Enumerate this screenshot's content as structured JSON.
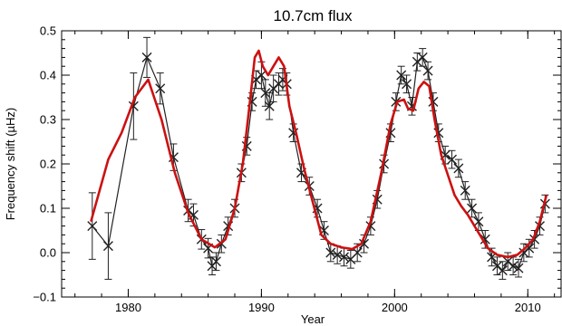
{
  "chart_data": {
    "type": "line",
    "title": "10.7cm flux",
    "xlabel": "Year",
    "ylabel": "Frequency shift (µHz)",
    "xlim": [
      1975,
      2012.5
    ],
    "ylim": [
      -0.1,
      0.5
    ],
    "x_ticks": [
      {
        "value": 1980,
        "label": "1980"
      },
      {
        "value": 1990,
        "label": "1990"
      },
      {
        "value": 2000,
        "label": "2000"
      },
      {
        "value": 2010,
        "label": "2010"
      }
    ],
    "y_ticks": [
      {
        "value": -0.1,
        "label": "−0.1"
      },
      {
        "value": 0.0,
        "label": "0.0"
      },
      {
        "value": 0.1,
        "label": "0.1"
      },
      {
        "value": 0.2,
        "label": "0.2"
      },
      {
        "value": 0.3,
        "label": "0.3"
      },
      {
        "value": 0.4,
        "label": "0.4"
      },
      {
        "value": 0.5,
        "label": "0.5"
      }
    ],
    "grid": false,
    "series": [
      {
        "kind": "observed",
        "color": "#222222",
        "marker": "x",
        "error_bars": true,
        "points": [
          {
            "x": 1977.3,
            "y": 0.06,
            "err": 0.075
          },
          {
            "x": 1978.5,
            "y": 0.015,
            "err": 0.075
          },
          {
            "x": 1980.4,
            "y": 0.33,
            "err": 0.075
          },
          {
            "x": 1981.4,
            "y": 0.44,
            "err": 0.045
          },
          {
            "x": 1982.4,
            "y": 0.37,
            "err": 0.035
          },
          {
            "x": 1983.4,
            "y": 0.215,
            "err": 0.03
          },
          {
            "x": 1984.5,
            "y": 0.095,
            "err": 0.025
          },
          {
            "x": 1984.9,
            "y": 0.085,
            "err": 0.025
          },
          {
            "x": 1985.5,
            "y": 0.03,
            "err": 0.022
          },
          {
            "x": 1986.0,
            "y": 0.01,
            "err": 0.022
          },
          {
            "x": 1986.3,
            "y": -0.03,
            "err": 0.02
          },
          {
            "x": 1986.6,
            "y": -0.02,
            "err": 0.02
          },
          {
            "x": 1987.0,
            "y": 0.02,
            "err": 0.02
          },
          {
            "x": 1987.5,
            "y": 0.06,
            "err": 0.02
          },
          {
            "x": 1988.0,
            "y": 0.1,
            "err": 0.02
          },
          {
            "x": 1988.5,
            "y": 0.18,
            "err": 0.02
          },
          {
            "x": 1988.9,
            "y": 0.24,
            "err": 0.02
          },
          {
            "x": 1989.3,
            "y": 0.34,
            "err": 0.02
          },
          {
            "x": 1989.6,
            "y": 0.39,
            "err": 0.02
          },
          {
            "x": 1990.0,
            "y": 0.4,
            "err": 0.03
          },
          {
            "x": 1990.3,
            "y": 0.36,
            "err": 0.03
          },
          {
            "x": 1990.6,
            "y": 0.33,
            "err": 0.03
          },
          {
            "x": 1990.9,
            "y": 0.37,
            "err": 0.03
          },
          {
            "x": 1991.3,
            "y": 0.38,
            "err": 0.025
          },
          {
            "x": 1991.6,
            "y": 0.39,
            "err": 0.025
          },
          {
            "x": 1991.9,
            "y": 0.38,
            "err": 0.025
          },
          {
            "x": 1992.4,
            "y": 0.27,
            "err": 0.02
          },
          {
            "x": 1993.0,
            "y": 0.18,
            "err": 0.02
          },
          {
            "x": 1993.6,
            "y": 0.15,
            "err": 0.02
          },
          {
            "x": 1994.2,
            "y": 0.1,
            "err": 0.02
          },
          {
            "x": 1994.7,
            "y": 0.05,
            "err": 0.02
          },
          {
            "x": 1995.2,
            "y": 0.0,
            "err": 0.02
          },
          {
            "x": 1995.7,
            "y": -0.005,
            "err": 0.02
          },
          {
            "x": 1996.2,
            "y": -0.01,
            "err": 0.02
          },
          {
            "x": 1996.7,
            "y": -0.015,
            "err": 0.02
          },
          {
            "x": 1997.2,
            "y": 0.0,
            "err": 0.02
          },
          {
            "x": 1997.7,
            "y": 0.02,
            "err": 0.02
          },
          {
            "x": 1998.2,
            "y": 0.06,
            "err": 0.02
          },
          {
            "x": 1998.7,
            "y": 0.12,
            "err": 0.02
          },
          {
            "x": 1999.2,
            "y": 0.2,
            "err": 0.02
          },
          {
            "x": 1999.7,
            "y": 0.27,
            "err": 0.02
          },
          {
            "x": 2000.1,
            "y": 0.34,
            "err": 0.02
          },
          {
            "x": 2000.5,
            "y": 0.4,
            "err": 0.02
          },
          {
            "x": 2000.9,
            "y": 0.38,
            "err": 0.02
          },
          {
            "x": 2001.3,
            "y": 0.33,
            "err": 0.02
          },
          {
            "x": 2001.7,
            "y": 0.43,
            "err": 0.02
          },
          {
            "x": 2002.1,
            "y": 0.44,
            "err": 0.02
          },
          {
            "x": 2002.5,
            "y": 0.41,
            "err": 0.02
          },
          {
            "x": 2002.9,
            "y": 0.34,
            "err": 0.02
          },
          {
            "x": 2003.3,
            "y": 0.27,
            "err": 0.02
          },
          {
            "x": 2003.8,
            "y": 0.22,
            "err": 0.02
          },
          {
            "x": 2004.3,
            "y": 0.21,
            "err": 0.02
          },
          {
            "x": 2004.8,
            "y": 0.19,
            "err": 0.02
          },
          {
            "x": 2005.3,
            "y": 0.14,
            "err": 0.02
          },
          {
            "x": 2005.8,
            "y": 0.1,
            "err": 0.02
          },
          {
            "x": 2006.3,
            "y": 0.07,
            "err": 0.02
          },
          {
            "x": 2006.8,
            "y": 0.03,
            "err": 0.02
          },
          {
            "x": 2007.3,
            "y": -0.01,
            "err": 0.02
          },
          {
            "x": 2007.7,
            "y": -0.03,
            "err": 0.02
          },
          {
            "x": 2008.1,
            "y": -0.04,
            "err": 0.02
          },
          {
            "x": 2008.5,
            "y": -0.02,
            "err": 0.02
          },
          {
            "x": 2008.9,
            "y": -0.03,
            "err": 0.02
          },
          {
            "x": 2009.3,
            "y": -0.035,
            "err": 0.02
          },
          {
            "x": 2009.7,
            "y": 0.0,
            "err": 0.02
          },
          {
            "x": 2010.1,
            "y": 0.01,
            "err": 0.02
          },
          {
            "x": 2010.5,
            "y": 0.03,
            "err": 0.02
          },
          {
            "x": 2010.9,
            "y": 0.06,
            "err": 0.02
          },
          {
            "x": 2011.3,
            "y": 0.11,
            "err": 0.02
          }
        ]
      },
      {
        "kind": "proxy",
        "color": "#cc1111",
        "points": [
          [
            1977.2,
            0.07
          ],
          [
            1978.5,
            0.21
          ],
          [
            1979.5,
            0.27
          ],
          [
            1980.5,
            0.35
          ],
          [
            1981.5,
            0.39
          ],
          [
            1982.5,
            0.3
          ],
          [
            1983.5,
            0.18
          ],
          [
            1984.5,
            0.09
          ],
          [
            1985.5,
            0.03
          ],
          [
            1986.5,
            0.012
          ],
          [
            1987.3,
            0.03
          ],
          [
            1988.0,
            0.1
          ],
          [
            1988.6,
            0.2
          ],
          [
            1989.1,
            0.33
          ],
          [
            1989.5,
            0.44
          ],
          [
            1989.8,
            0.455
          ],
          [
            1990.1,
            0.42
          ],
          [
            1990.5,
            0.4
          ],
          [
            1990.9,
            0.42
          ],
          [
            1991.3,
            0.44
          ],
          [
            1991.7,
            0.42
          ],
          [
            1992.1,
            0.33
          ],
          [
            1992.6,
            0.27
          ],
          [
            1993.2,
            0.19
          ],
          [
            1993.8,
            0.12
          ],
          [
            1994.5,
            0.04
          ],
          [
            1995.2,
            0.02
          ],
          [
            1996.0,
            0.012
          ],
          [
            1996.8,
            0.008
          ],
          [
            1997.5,
            0.02
          ],
          [
            1998.2,
            0.07
          ],
          [
            1999.0,
            0.18
          ],
          [
            1999.7,
            0.29
          ],
          [
            2000.2,
            0.34
          ],
          [
            2000.7,
            0.345
          ],
          [
            2001.0,
            0.325
          ],
          [
            2001.4,
            0.32
          ],
          [
            2001.8,
            0.37
          ],
          [
            2002.2,
            0.385
          ],
          [
            2002.6,
            0.375
          ],
          [
            2003.0,
            0.3
          ],
          [
            2003.5,
            0.22
          ],
          [
            2004.0,
            0.175
          ],
          [
            2004.5,
            0.13
          ],
          [
            2005.0,
            0.105
          ],
          [
            2005.5,
            0.085
          ],
          [
            2006.0,
            0.06
          ],
          [
            2006.5,
            0.035
          ],
          [
            2007.0,
            0.01
          ],
          [
            2007.7,
            -0.005
          ],
          [
            2008.5,
            -0.01
          ],
          [
            2009.2,
            -0.005
          ],
          [
            2009.8,
            0.01
          ],
          [
            2010.4,
            0.03
          ],
          [
            2010.9,
            0.07
          ],
          [
            2011.4,
            0.13
          ]
        ]
      }
    ]
  }
}
